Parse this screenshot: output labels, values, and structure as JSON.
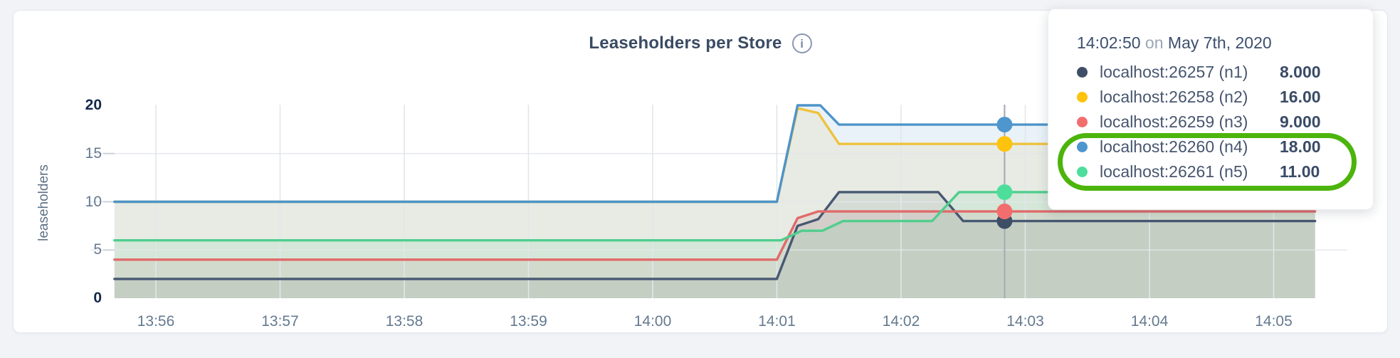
{
  "page": {
    "background": "#f1f3f7"
  },
  "header": {
    "title": "Leaseholders per Store",
    "info_glyph": "i"
  },
  "y_axis": {
    "label": "leaseholders",
    "ticks": [
      0,
      5,
      10,
      15,
      20
    ],
    "bold_ticks": [
      0,
      20
    ]
  },
  "x_axis": {
    "ticks": [
      "13:56",
      "13:57",
      "13:58",
      "13:59",
      "14:00",
      "14:01",
      "14:02",
      "14:03",
      "14:04",
      "14:05"
    ]
  },
  "chart_data": {
    "type": "area",
    "title": "Leaseholders per Store",
    "xlabel": "",
    "ylabel": "leaseholders",
    "ylim": [
      0,
      20
    ],
    "x_start": "13:55:40",
    "x_end": "14:05:20",
    "x_ticks": [
      "13:56",
      "13:57",
      "13:58",
      "13:59",
      "14:00",
      "14:01",
      "14:02",
      "14:03",
      "14:04",
      "14:05"
    ],
    "grid": true,
    "legend_position": "hover-tooltip-top-right",
    "hover_time": "14:02:50",
    "fill_opacity": 0.12,
    "grid_color": "#e2e6eb",
    "tick_dash_color": "#ccd2da",
    "hover_line_color": "#a8adb5",
    "series": [
      {
        "name": "localhost:26257 (n1)",
        "line_color": "#475872",
        "dot_color": "#3e4e66",
        "hover_value": 8,
        "points": [
          [
            "13:55:40",
            2
          ],
          [
            "14:01:00",
            2
          ],
          [
            "14:01:10",
            7.5
          ],
          [
            "14:01:20",
            8.2
          ],
          [
            "14:01:30",
            11
          ],
          [
            "14:02:18",
            11
          ],
          [
            "14:02:30",
            8
          ],
          [
            "14:05:20",
            8
          ]
        ]
      },
      {
        "name": "localhost:26258 (n2)",
        "line_color": "#efc23e",
        "dot_color": "#fec30d",
        "hover_value": 16,
        "points": [
          [
            "13:55:40",
            10
          ],
          [
            "14:01:00",
            10
          ],
          [
            "14:01:10",
            19.7
          ],
          [
            "14:01:20",
            19.2
          ],
          [
            "14:01:30",
            16
          ],
          [
            "14:05:20",
            16
          ]
        ]
      },
      {
        "name": "localhost:26259 (n3)",
        "line_color": "#e06a6a",
        "dot_color": "#f26e6e",
        "hover_value": 9,
        "points": [
          [
            "13:55:40",
            4
          ],
          [
            "14:01:00",
            4
          ],
          [
            "14:01:10",
            8.3
          ],
          [
            "14:01:20",
            9
          ],
          [
            "14:05:20",
            9
          ]
        ]
      },
      {
        "name": "localhost:26260 (n4)",
        "line_color": "#4d94c9",
        "dot_color": "#4e96ce",
        "hover_value": 18,
        "points": [
          [
            "13:55:40",
            10
          ],
          [
            "14:01:00",
            10
          ],
          [
            "14:01:10",
            20
          ],
          [
            "14:01:21",
            20
          ],
          [
            "14:01:30",
            18
          ],
          [
            "14:05:20",
            18
          ]
        ]
      },
      {
        "name": "localhost:26261 (n5)",
        "line_color": "#4fce8e",
        "dot_color": "#4ede9c",
        "hover_value": 11,
        "points": [
          [
            "13:55:40",
            6
          ],
          [
            "14:01:02",
            6
          ],
          [
            "14:01:12",
            7
          ],
          [
            "14:01:22",
            7
          ],
          [
            "14:01:32",
            8
          ],
          [
            "14:02:15",
            8
          ],
          [
            "14:02:28",
            11
          ],
          [
            "14:05:20",
            11
          ]
        ]
      }
    ]
  },
  "tooltip": {
    "time": "14:02:50",
    "connector": "on",
    "date": "May 7th, 2020",
    "rows": [
      {
        "label": "localhost:26257 (n1)",
        "value": "8.000"
      },
      {
        "label": "localhost:26258 (n2)",
        "value": "16.00"
      },
      {
        "label": "localhost:26259 (n3)",
        "value": "9.000"
      },
      {
        "label": "localhost:26260 (n4)",
        "value": "18.00"
      },
      {
        "label": "localhost:26261 (n5)",
        "value": "11.00"
      }
    ],
    "annotation": {
      "color": "#4cb40c",
      "circled_rows": [
        3,
        4
      ]
    }
  }
}
